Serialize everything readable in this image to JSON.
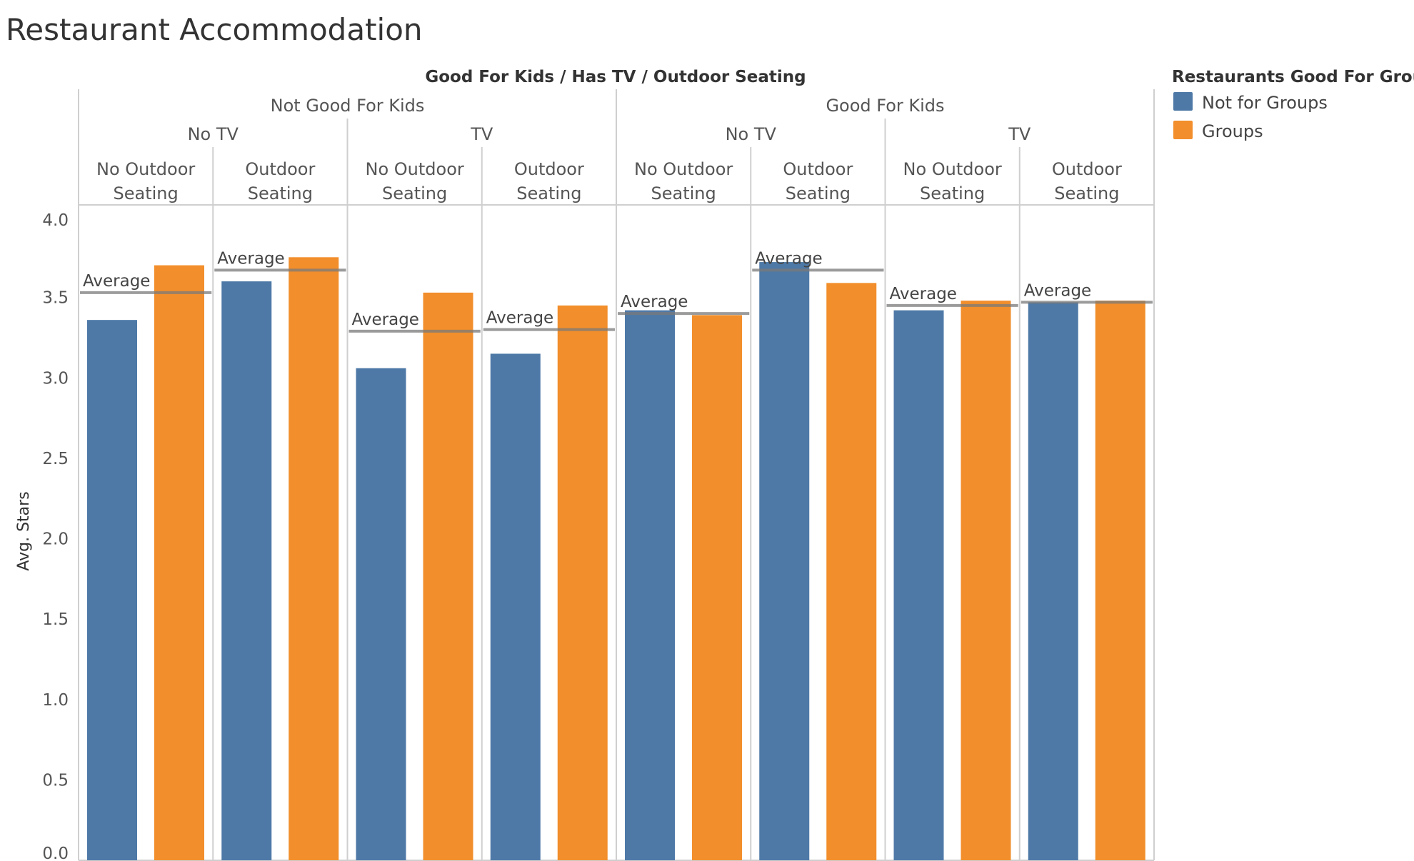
{
  "title": "Restaurant Accommodation",
  "colors": {
    "not_for_groups": "#4e79a7",
    "groups": "#f28e2b"
  },
  "chart_data": {
    "type": "bar",
    "title": "Restaurant Accommodation",
    "column_header_title": "Good For Kids / Has TV / Outdoor Seating",
    "ylabel": "Avg. Stars",
    "xlabel": "",
    "ylim": [
      0,
      4
    ],
    "yticks": [
      "0.0",
      "0.5",
      "1.0",
      "1.5",
      "2.0",
      "2.5",
      "3.0",
      "3.5",
      "4.0"
    ],
    "level1": [
      "Not Good For Kids",
      "Good For Kids"
    ],
    "level2": [
      "No TV",
      "TV",
      "No TV",
      "TV"
    ],
    "level3": [
      [
        "No Outdoor",
        "Seating"
      ],
      [
        "Outdoor",
        "Seating"
      ],
      [
        "No Outdoor",
        "Seating"
      ],
      [
        "Outdoor",
        "Seating"
      ],
      [
        "No Outdoor",
        "Seating"
      ],
      [
        "Outdoor",
        "Seating"
      ],
      [
        "No Outdoor",
        "Seating"
      ],
      [
        "Outdoor",
        "Seating"
      ]
    ],
    "series": [
      {
        "name": "Not for Groups",
        "values": [
          3.36,
          3.6,
          3.06,
          3.15,
          3.42,
          3.72,
          3.42,
          3.47
        ]
      },
      {
        "name": "Groups",
        "values": [
          3.7,
          3.75,
          3.53,
          3.45,
          3.39,
          3.59,
          3.48,
          3.48
        ]
      }
    ],
    "average_label": "Average",
    "averages": [
      3.53,
      3.67,
      3.29,
      3.3,
      3.4,
      3.67,
      3.45,
      3.47
    ],
    "legend": {
      "title": "Restaurants Good For Groups",
      "items": [
        "Not for Groups",
        "Groups"
      ],
      "placement": "right"
    },
    "grid": false
  }
}
